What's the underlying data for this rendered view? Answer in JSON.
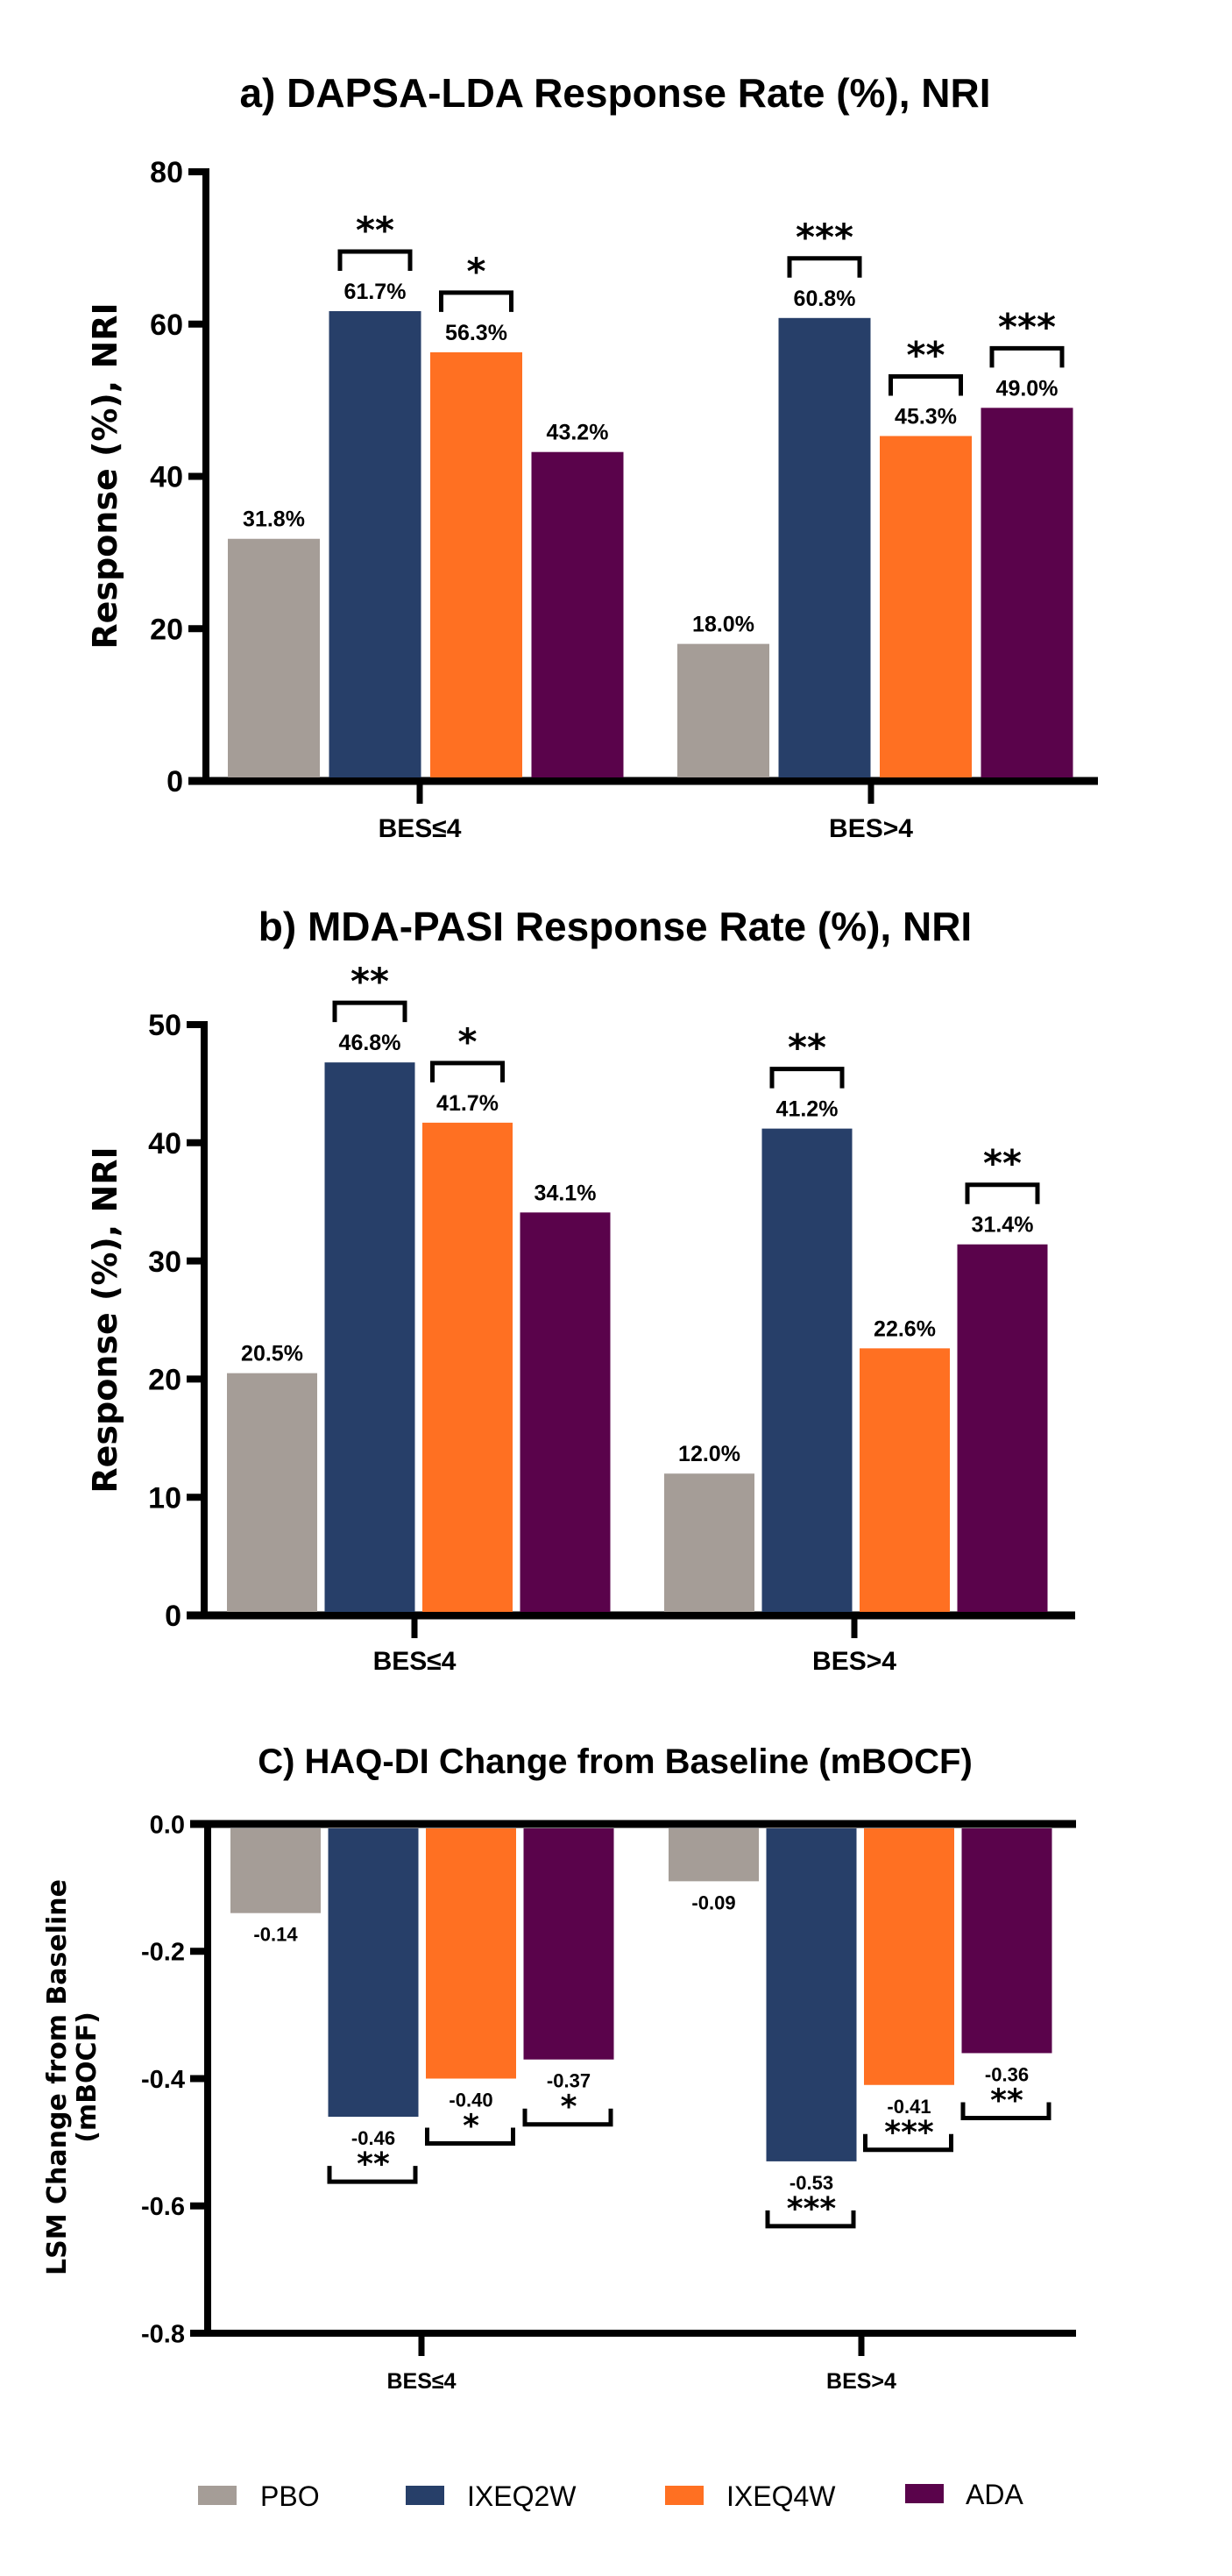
{
  "colors": {
    "PBO": "#A59D97",
    "IXEQ2W": "#273F69",
    "IXEQ4W": "#FF7022",
    "ADA": "#5A034B"
  },
  "legend": {
    "items": [
      {
        "key": "PBO",
        "label": "PBO"
      },
      {
        "key": "IXEQ2W",
        "label": "IXEQ2W"
      },
      {
        "key": "IXEQ4W",
        "label": "IXEQ4W"
      },
      {
        "key": "ADA",
        "label": "ADA"
      }
    ],
    "placement": "bottom"
  },
  "chart_data": [
    {
      "type": "bar",
      "title": "a) DAPSA-LDA Response Rate (%), NRI",
      "xlabel": "",
      "ylabel": "Response (%), NRI",
      "ylim": [
        0,
        80
      ],
      "yticks": [
        0,
        20,
        40,
        60,
        80
      ],
      "ytick_labels": [
        "0",
        "20",
        "40",
        "60",
        "80"
      ],
      "categories": [
        "BES≤4",
        "BES>4"
      ],
      "series": [
        {
          "name": "PBO",
          "values": [
            31.8,
            18.0
          ],
          "labels": [
            "31.8%",
            "18.0%"
          ],
          "significance": [
            "",
            ""
          ]
        },
        {
          "name": "IXEQ2W",
          "values": [
            61.7,
            60.8
          ],
          "labels": [
            "61.7%",
            "60.8%"
          ],
          "significance": [
            "**",
            "***"
          ]
        },
        {
          "name": "IXEQ4W",
          "values": [
            56.3,
            45.3
          ],
          "labels": [
            "56.3%",
            "45.3%"
          ],
          "significance": [
            "*",
            "**"
          ]
        },
        {
          "name": "ADA",
          "values": [
            43.2,
            49.0
          ],
          "labels": [
            "43.2%",
            "49.0%"
          ],
          "significance": [
            "",
            "***"
          ]
        }
      ],
      "grid": false
    },
    {
      "type": "bar",
      "title": "b) MDA-PASI Response Rate (%), NRI",
      "xlabel": "",
      "ylabel": "Response (%), NRI",
      "ylim": [
        0,
        50
      ],
      "yticks": [
        0,
        10,
        20,
        30,
        40,
        50
      ],
      "ytick_labels": [
        "0",
        "10",
        "20",
        "30",
        "40",
        "50"
      ],
      "categories": [
        "BES≤4",
        "BES>4"
      ],
      "series": [
        {
          "name": "PBO",
          "values": [
            20.5,
            12.0
          ],
          "labels": [
            "20.5%",
            "12.0%"
          ],
          "significance": [
            "",
            ""
          ]
        },
        {
          "name": "IXEQ2W",
          "values": [
            46.8,
            41.2
          ],
          "labels": [
            "46.8%",
            "41.2%"
          ],
          "significance": [
            "**",
            "**"
          ]
        },
        {
          "name": "IXEQ4W",
          "values": [
            41.7,
            22.6
          ],
          "labels": [
            "41.7%",
            "22.6%"
          ],
          "significance": [
            "*",
            ""
          ]
        },
        {
          "name": "ADA",
          "values": [
            34.1,
            31.4
          ],
          "labels": [
            "34.1%",
            "31.4%"
          ],
          "significance": [
            "",
            "**"
          ]
        }
      ],
      "grid": false
    },
    {
      "type": "bar",
      "title": "C) HAQ-DI Change from Baseline (mBOCF)",
      "xlabel": "",
      "ylabel": "LSM Change from Baseline (mBOCF)",
      "ylabel_lines": [
        "LSM Change from Baseline",
        "(mBOCF)"
      ],
      "ylim": [
        -0.8,
        0.0
      ],
      "yticks": [
        0.0,
        -0.2,
        -0.4,
        -0.6,
        -0.8
      ],
      "ytick_labels": [
        "0.0",
        "-0.2",
        "-0.4",
        "-0.6",
        "-0.8"
      ],
      "categories": [
        "BES≤4",
        "BES>4"
      ],
      "series": [
        {
          "name": "PBO",
          "values": [
            -0.14,
            -0.09
          ],
          "labels": [
            "-0.14",
            "-0.09"
          ],
          "significance": [
            "",
            ""
          ]
        },
        {
          "name": "IXEQ2W",
          "values": [
            -0.46,
            -0.53
          ],
          "labels": [
            "-0.46",
            "-0.53"
          ],
          "significance": [
            "**",
            "***"
          ]
        },
        {
          "name": "IXEQ4W",
          "values": [
            -0.4,
            -0.41
          ],
          "labels": [
            "-0.40",
            "-0.41"
          ],
          "significance": [
            "*",
            "***"
          ]
        },
        {
          "name": "ADA",
          "values": [
            -0.37,
            -0.36
          ],
          "labels": [
            "-0.37",
            "-0.36"
          ],
          "significance": [
            "*",
            "**"
          ]
        }
      ],
      "grid": false
    }
  ]
}
